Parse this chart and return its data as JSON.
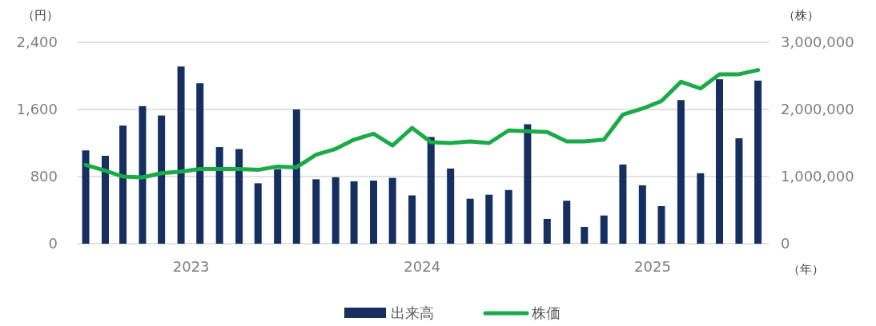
{
  "chart_data": {
    "type": "bar",
    "xlabel": "（年）",
    "ylabel": "（円）",
    "y2label": "（株）",
    "x": [
      "2023-01-15",
      "2023-02-15",
      "2023-03-15",
      "2023-04-15",
      "2023-05-15",
      "2023-06-15",
      "2023-07-15",
      "2023-08-15",
      "2023-09-15",
      "2023-10-15",
      "2023-11-15",
      "2023-12-15",
      "2024-01-15",
      "2024-02-15",
      "2024-03-15",
      "2024-04-15",
      "2024-05-15",
      "2024-06-15",
      "2024-07-15",
      "2024-08-15",
      "2024-09-15",
      "2024-10-15",
      "2024-11-15",
      "2024-12-15",
      "2025-01-15",
      "2025-02-15",
      "2025-03-15",
      "2025-04-15",
      "2025-05-15",
      "2025-06-15",
      "2025-07-15",
      "2025-08-15",
      "2025-09-15",
      "2025-10-15",
      "2025-11-15",
      "2025-12-15"
    ],
    "xlim": [
      "2023-01-01",
      "2026-01-01"
    ],
    "xticks": [
      {
        "value": "2023-07-01",
        "label": "2023"
      },
      {
        "value": "2024-07-01",
        "label": "2024"
      },
      {
        "value": "2025-07-01",
        "label": "2025"
      }
    ],
    "series": [
      {
        "name": "出来高",
        "axis": "y2",
        "color": "#142f60",
        "values": [
          1390000,
          1310000,
          1760000,
          2050000,
          1910000,
          2640000,
          2390000,
          1440000,
          1410000,
          900000,
          1110000,
          2000000,
          960000,
          990000,
          930000,
          940000,
          980000,
          720000,
          1590000,
          1120000,
          670000,
          730000,
          800000,
          1780000,
          370000,
          640000,
          250000,
          420000,
          1180000,
          870000,
          560000,
          2140000,
          1050000,
          2450000,
          1570000,
          2430000
        ]
      },
      {
        "name": "株価",
        "type": "line",
        "color": "#1aab48",
        "values": [
          940,
          870,
          800,
          790,
          840,
          860,
          890,
          890,
          890,
          880,
          920,
          910,
          1060,
          1130,
          1240,
          1310,
          1170,
          1380,
          1210,
          1200,
          1220,
          1200,
          1350,
          1340,
          1330,
          1220,
          1220,
          1240,
          1540,
          1610,
          1700,
          1930,
          1850,
          2020,
          2020,
          2070
        ]
      }
    ],
    "ylim": [
      0,
      2400
    ],
    "yticks": [
      0,
      800,
      {
        "value": 1600,
        "label": "1,600"
      },
      {
        "value": 2400,
        "label": "2,400"
      }
    ],
    "y2lim": [
      0,
      3000000
    ],
    "y2ticks": [
      0,
      {
        "value": 1000000,
        "label": "1,000,000"
      },
      {
        "value": 2000000,
        "label": "2,000,000"
      },
      {
        "value": 3000000,
        "label": "3,000,000"
      }
    ],
    "grid": "y",
    "legend": "bottom",
    "marker": "none",
    "line_style": "solid"
  }
}
